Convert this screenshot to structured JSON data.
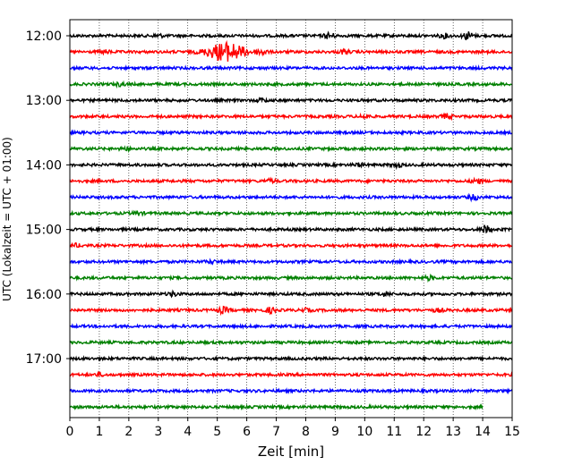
{
  "chart_data": {
    "type": "line",
    "subtype": "helicorder",
    "xlabel": "Zeit  [min]",
    "ylabel": "UTC (Lokalzeit = UTC + 01:00)",
    "xlim": [
      0,
      15
    ],
    "x_ticks": [
      "0",
      "1",
      "2",
      "3",
      "4",
      "5",
      "6",
      "7",
      "8",
      "9",
      "10",
      "11",
      "12",
      "13",
      "14",
      "15"
    ],
    "y_tick_labels": [
      "12:00",
      "13:00",
      "14:00",
      "15:00",
      "16:00",
      "17:00"
    ],
    "grid": "vertical dotted lines at each minute",
    "trace_interval_min": 15,
    "trace_colors": [
      "#000000",
      "#ff0000",
      "#0000ff",
      "#008000"
    ],
    "traces": [
      {
        "start": "12:00",
        "color": "#000000",
        "events": [
          [
            3.0,
            1.5
          ],
          [
            8.8,
            3.0
          ],
          [
            12.7,
            2.0
          ],
          [
            13.5,
            4.0
          ]
        ]
      },
      {
        "start": "12:15",
        "color": "#ff0000",
        "events": [
          [
            1.2,
            1.5
          ],
          [
            5.3,
            10.0
          ],
          [
            6.5,
            3.0
          ],
          [
            9.3,
            2.0
          ]
        ]
      },
      {
        "start": "12:30",
        "color": "#0000ff",
        "events": []
      },
      {
        "start": "12:45",
        "color": "#008000",
        "events": [
          [
            1.7,
            1.5
          ]
        ]
      },
      {
        "start": "13:00",
        "color": "#000000",
        "events": [
          [
            6.5,
            1.5
          ]
        ]
      },
      {
        "start": "13:15",
        "color": "#ff0000",
        "events": [
          [
            10.0,
            1.5
          ],
          [
            12.8,
            2.5
          ]
        ]
      },
      {
        "start": "13:30",
        "color": "#0000ff",
        "events": []
      },
      {
        "start": "13:45",
        "color": "#008000",
        "events": [
          [
            1.9,
            1.5
          ]
        ]
      },
      {
        "start": "14:00",
        "color": "#000000",
        "events": [
          [
            9.8,
            1.5
          ],
          [
            11.1,
            2.0
          ]
        ]
      },
      {
        "start": "14:15",
        "color": "#ff0000",
        "events": [
          [
            6.8,
            1.5
          ],
          [
            13.8,
            2.5
          ]
        ]
      },
      {
        "start": "14:30",
        "color": "#0000ff",
        "events": [
          [
            13.7,
            2.5
          ]
        ]
      },
      {
        "start": "14:45",
        "color": "#008000",
        "events": [
          [
            2.3,
            1.5
          ]
        ]
      },
      {
        "start": "15:00",
        "color": "#000000",
        "events": [
          [
            14.1,
            4.0
          ]
        ]
      },
      {
        "start": "15:15",
        "color": "#ff0000",
        "events": [
          [
            0.2,
            1.5
          ]
        ]
      },
      {
        "start": "15:30",
        "color": "#0000ff",
        "events": [
          [
            4.8,
            1.3
          ]
        ]
      },
      {
        "start": "15:45",
        "color": "#008000",
        "events": [
          [
            12.2,
            2.0
          ]
        ]
      },
      {
        "start": "16:00",
        "color": "#000000",
        "events": [
          [
            3.5,
            2.0
          ],
          [
            10.7,
            2.0
          ]
        ]
      },
      {
        "start": "16:15",
        "color": "#ff0000",
        "events": [
          [
            5.2,
            3.0
          ],
          [
            6.8,
            2.5
          ],
          [
            8.0,
            1.5
          ],
          [
            12.5,
            1.5
          ]
        ]
      },
      {
        "start": "16:30",
        "color": "#0000ff",
        "events": []
      },
      {
        "start": "16:45",
        "color": "#008000",
        "events": []
      },
      {
        "start": "17:00",
        "color": "#000000",
        "events": []
      },
      {
        "start": "17:15",
        "color": "#ff0000",
        "events": [
          [
            1.0,
            1.3
          ]
        ]
      },
      {
        "start": "17:30",
        "color": "#0000ff",
        "events": []
      },
      {
        "start": "17:45",
        "color": "#008000",
        "end_min": 14.0,
        "events": []
      }
    ]
  }
}
